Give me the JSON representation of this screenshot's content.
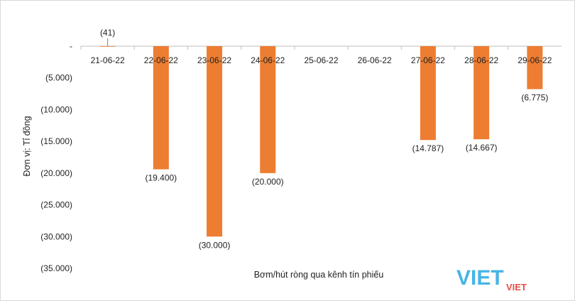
{
  "chart_data": {
    "type": "bar",
    "categories": [
      "21-06-22",
      "22-06-22",
      "23-06-22",
      "24-06-22",
      "25-06-22",
      "26-06-22",
      "27-06-22",
      "28-06-22",
      "29-06-22"
    ],
    "values": [
      -41,
      -19400,
      -30000,
      -20000,
      null,
      null,
      -14787,
      -14667,
      -6775
    ],
    "data_labels": [
      "(41)",
      "(19.400)",
      "(30.000)",
      "(20.000)",
      "",
      "",
      "(14.787)",
      "(14.667)",
      "(6.775)"
    ],
    "ylabel": "Đơn vị: Tỉ đồng",
    "xlabel": "Bơm/hút ròng qua kênh tín phiếu",
    "ylim": [
      -35000,
      0
    ],
    "yticks": [
      0,
      -5000,
      -10000,
      -15000,
      -20000,
      -25000,
      -30000,
      -35000
    ],
    "ytick_labels": [
      "-",
      "(5.000)",
      "(10.000)",
      "(15.000)",
      "(20.000)",
      "(25.000)",
      "(30.000)",
      "(35.000)"
    ],
    "grid": false,
    "bar_color": "#ED7D31",
    "axis_color": "#BFBFBF"
  },
  "watermark": {
    "text_main": "VIET",
    "text_sub": "VIET",
    "color_main": "#29A9E1",
    "color_sub": "#E53935"
  }
}
